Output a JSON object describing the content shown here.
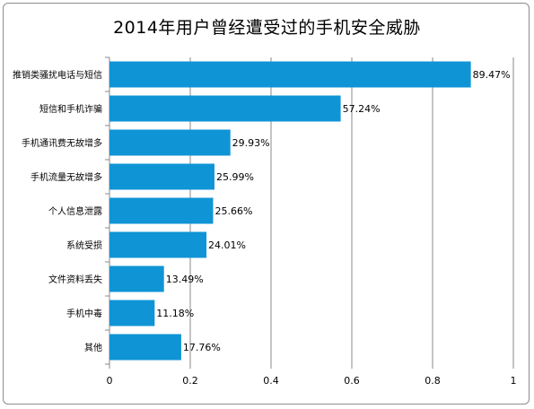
{
  "chart_data": {
    "type": "bar",
    "orientation": "horizontal",
    "title": "2014年用户曾经遭受过的手机安全威胁",
    "categories": [
      "推销类骚扰电话与短信",
      "短信和手机诈骗",
      "手机通讯费无故增多",
      "手机流量无故增多",
      "个人信息泄露",
      "系统受损",
      "文件资料丢失",
      "手机中毒",
      "其他"
    ],
    "values": [
      0.8947,
      0.5724,
      0.2993,
      0.2599,
      0.2566,
      0.2401,
      0.1349,
      0.1118,
      0.1776
    ],
    "value_labels": [
      "89.47%",
      "57.24%",
      "29.93%",
      "25.99%",
      "25.66%",
      "24.01%",
      "13.49%",
      "11.18%",
      "17.76%"
    ],
    "xlim": [
      0,
      1
    ],
    "xticks": [
      "0",
      "0.2",
      "0.4",
      "0.6",
      "0.8",
      "1"
    ],
    "xtick_values": [
      0,
      0.2,
      0.4,
      0.6,
      0.8,
      1
    ],
    "grid": "vertical",
    "bar_color": "#0f94d6",
    "grid_color": "#8a8a8a"
  }
}
